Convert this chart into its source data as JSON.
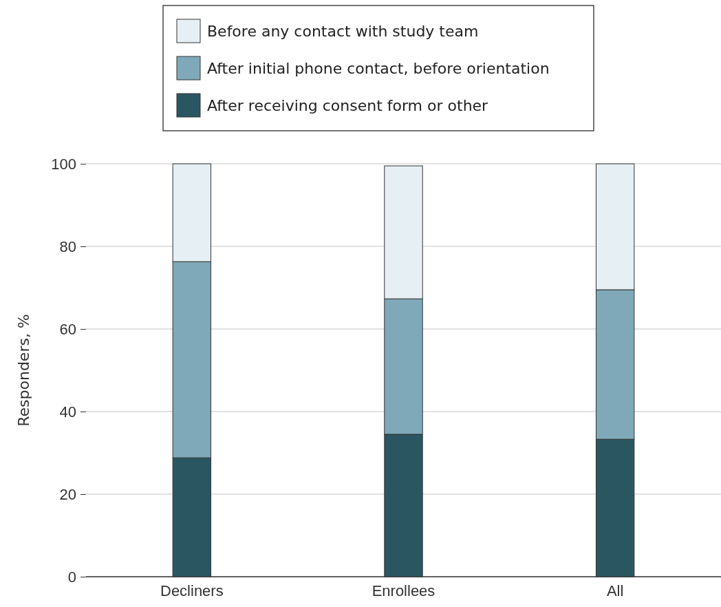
{
  "chart_data": {
    "type": "bar",
    "stacked": true,
    "ylabel": "Responders, %",
    "categories": [
      "Decliners",
      "Enrollees",
      "All"
    ],
    "series": [
      {
        "name": "After receiving consent form or other",
        "color": "#2a5661",
        "values": [
          28.8,
          34.5,
          33.3
        ]
      },
      {
        "name": "After initial phone contact, before orientation",
        "color": "#7fa9b9",
        "values": [
          47.5,
          32.8,
          36.2
        ]
      },
      {
        "name": "Before any contact with study team",
        "color": "#e6eff3",
        "values": [
          23.7,
          32.2,
          30.5
        ]
      }
    ],
    "ylim": [
      0,
      100
    ],
    "yticks": [
      0,
      20,
      40,
      60,
      80,
      100
    ],
    "grid": "y",
    "legend": "top"
  }
}
